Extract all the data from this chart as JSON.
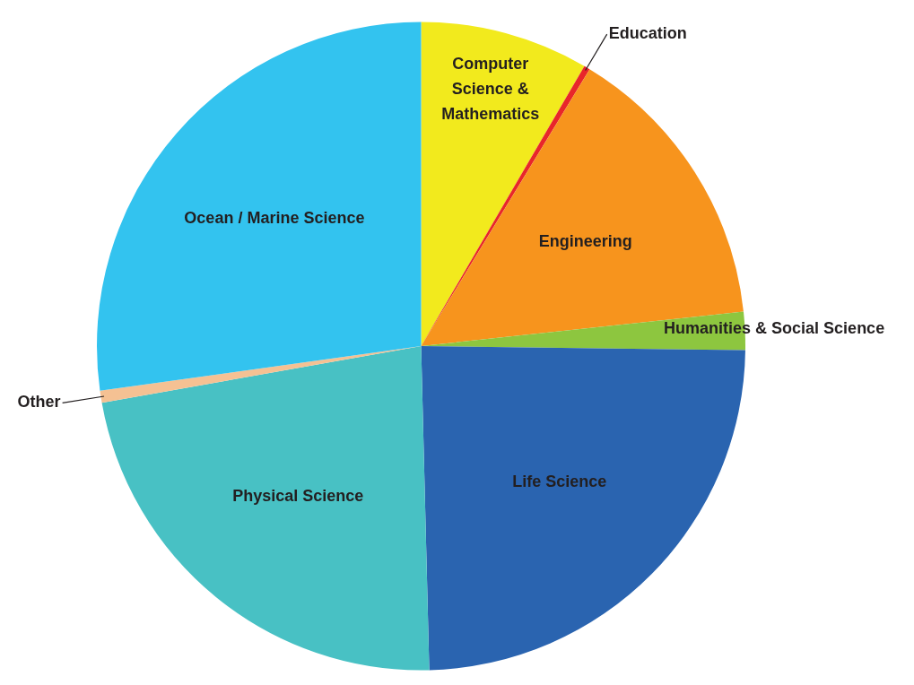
{
  "chart_data": {
    "type": "pie",
    "categories": [
      "Computer Science & Mathematics",
      "Education",
      "Engineering",
      "Humanities & Social Science",
      "Life Science",
      "Physical Science",
      "Other",
      "Ocean / Marine Science"
    ],
    "values": [
      8.4,
      0.3,
      14.6,
      1.9,
      24.4,
      22.6,
      0.6,
      27.2
    ],
    "colors": [
      "#f2ea1d",
      "#e8262a",
      "#f7941d",
      "#8dc63f",
      "#2a64b0",
      "#48c1c4",
      "#f5c193",
      "#33c3ef"
    ],
    "legend": false
  }
}
